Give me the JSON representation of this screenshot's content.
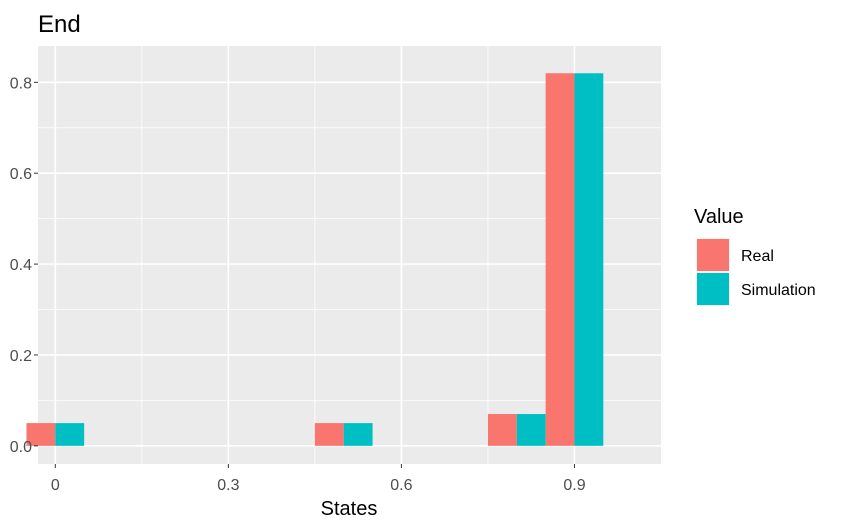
{
  "chart_data": {
    "type": "bar",
    "title": "End",
    "xlabel": "States",
    "ylabel": "",
    "x_ticks": [
      0,
      0.3,
      0.6,
      0.9
    ],
    "x_tick_labels": [
      "0",
      "0.3",
      "0.6",
      "0.9"
    ],
    "y_ticks": [
      0,
      0.2,
      0.4,
      0.6,
      0.8
    ],
    "y_tick_labels": [
      "0.0",
      "0.2",
      "0.4",
      "0.6",
      "0.8"
    ],
    "xlim": [
      -0.03,
      1.05
    ],
    "ylim": [
      -0.04,
      0.88
    ],
    "grid": true,
    "legend": {
      "title": "Value",
      "position": "right"
    },
    "x": [
      0,
      0.5,
      0.8,
      0.9
    ],
    "series": [
      {
        "name": "Real",
        "color": "#F8766D",
        "values": [
          0.05,
          0.05,
          0.07,
          0.82
        ]
      },
      {
        "name": "Simulation",
        "color": "#00BFC4",
        "values": [
          0.05,
          0.05,
          0.07,
          0.82
        ]
      }
    ]
  }
}
